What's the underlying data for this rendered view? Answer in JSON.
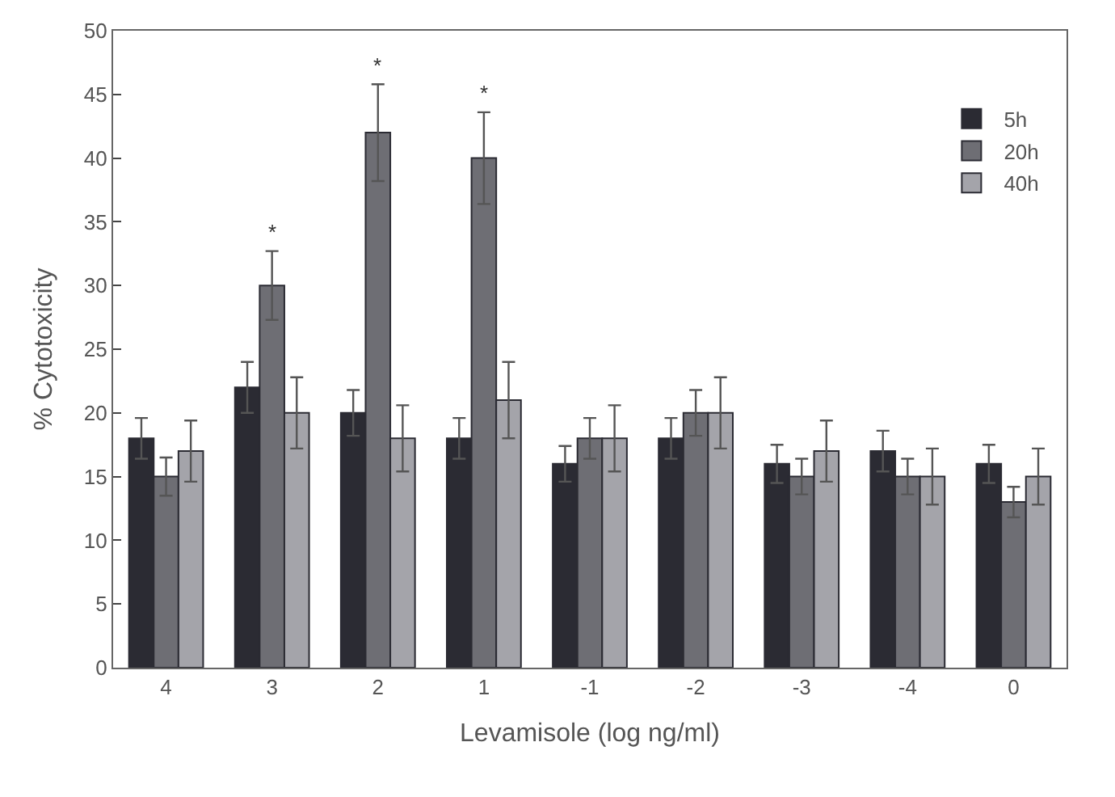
{
  "chart_data": {
    "type": "bar",
    "xlabel": "Levamisole (log ng/ml)",
    "ylabel": "% Cytotoxicity",
    "categories": [
      "4",
      "3",
      "2",
      "1",
      "-1",
      "-2",
      "-3",
      "-4",
      "0"
    ],
    "series": [
      {
        "name": "5h",
        "color": "#2b2b33",
        "values": [
          18,
          22,
          20,
          18,
          16,
          18,
          16,
          17,
          16
        ],
        "errors": [
          1.6,
          2,
          1.8,
          1.6,
          1.4,
          1.6,
          1.5,
          1.6,
          1.5
        ]
      },
      {
        "name": "20h",
        "color": "#6e6e74",
        "values": [
          15,
          30,
          42,
          40,
          18,
          20,
          15,
          15,
          13
        ],
        "errors": [
          1.5,
          2.7,
          3.8,
          3.6,
          1.6,
          1.8,
          1.4,
          1.4,
          1.2
        ]
      },
      {
        "name": "40h",
        "color": "#a4a4aa",
        "values": [
          17,
          20,
          18,
          21,
          18,
          20,
          17,
          15,
          15
        ],
        "errors": [
          2.4,
          2.8,
          2.6,
          3,
          2.6,
          2.8,
          2.4,
          2.2,
          2.2
        ]
      }
    ],
    "annotations": [
      {
        "text": "*",
        "x": "3",
        "y": 30
      },
      {
        "text": "*",
        "x": "2",
        "y": 42
      },
      {
        "text": "*",
        "x": "1",
        "y": 40
      }
    ],
    "ylim": [
      0,
      50
    ],
    "yticks": [
      0,
      5,
      10,
      15,
      20,
      25,
      30,
      35,
      40,
      45,
      50
    ],
    "legend": "top right"
  }
}
